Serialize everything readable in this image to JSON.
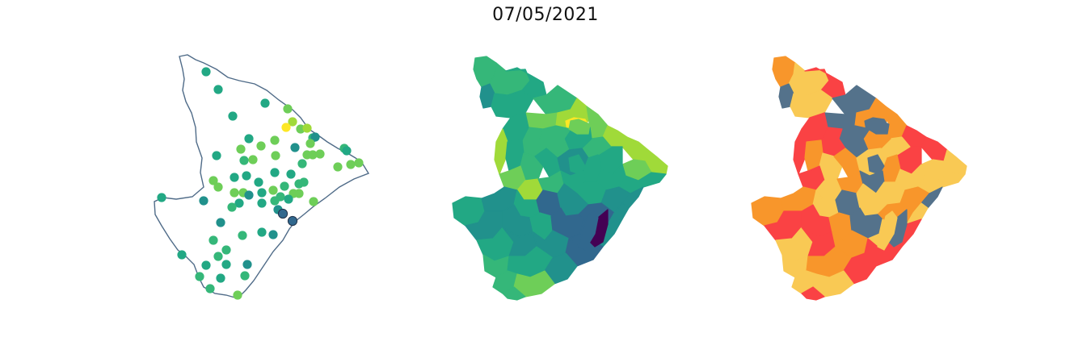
{
  "title": "07/05/2021",
  "panels": [
    {
      "name": "station-points-map",
      "kind": "points"
    },
    {
      "name": "municipality-choropleth-viridis",
      "kind": "choropleth",
      "palette": "viridis"
    },
    {
      "name": "municipality-choropleth-alert",
      "kind": "choropleth",
      "palette": "alert"
    }
  ],
  "colors": {
    "outline": "#4f6b88",
    "viridis": [
      "#440154",
      "#31688e",
      "#21918c",
      "#22a884",
      "#35b779",
      "#6ece58",
      "#a0da39",
      "#fde725"
    ],
    "alert": [
      "#fa4244",
      "#f8962b",
      "#f9c954",
      "#54728b"
    ]
  }
}
